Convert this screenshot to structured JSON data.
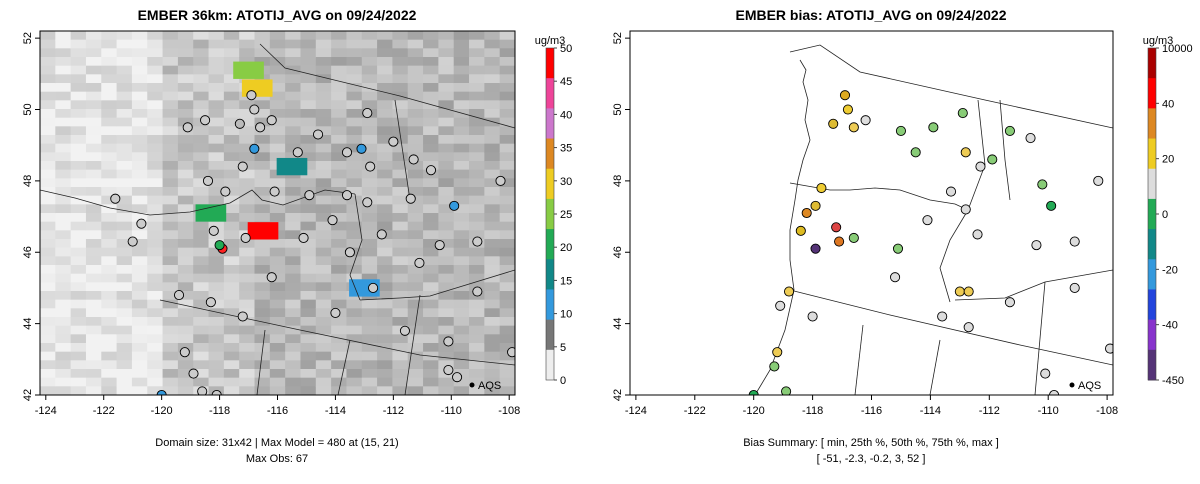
{
  "chart_data": [
    {
      "type": "heatmap",
      "title": "EMBER 36km: ATOTIJ_AVG on 09/24/2022",
      "x_ticks": [
        -124,
        -122,
        -120,
        -118,
        -116,
        -114,
        -112,
        -110,
        -108
      ],
      "y_ticks": [
        42,
        44,
        46,
        48,
        50,
        52
      ],
      "xlim": [
        -124.2,
        -107.8
      ],
      "ylim": [
        42.0,
        52.2
      ],
      "legend": {
        "unit": "ug/m3",
        "labels": [
          "50",
          "45",
          "40",
          "35",
          "30",
          "25",
          "20",
          "15",
          "10",
          "5",
          "0"
        ],
        "colors": [
          "#ff0000",
          "#ee4499",
          "#cc77cc",
          "#dd8822",
          "#eecc22",
          "#88cc44",
          "#22aa55",
          "#118888",
          "#3399dd",
          "#777777",
          "#eeeeee"
        ]
      },
      "hotspots": [
        {
          "lon": -116.5,
          "lat": 46.6,
          "value": 50
        },
        {
          "lon": -116.7,
          "lat": 50.6,
          "value": 30
        },
        {
          "lon": -117.0,
          "lat": 51.1,
          "value": 25
        },
        {
          "lon": -118.3,
          "lat": 47.1,
          "value": 22
        },
        {
          "lon": -115.5,
          "lat": 48.4,
          "value": 15
        },
        {
          "lon": -113.0,
          "lat": 45.0,
          "value": 12
        }
      ],
      "stations": [
        {
          "lon": -117.1,
          "lat": 46.4,
          "color": "#cccccc"
        },
        {
          "lon": -117.9,
          "lat": 46.1,
          "color": "#ff2222"
        },
        {
          "lon": -116.9,
          "lat": 50.4,
          "color": "#cccccc"
        },
        {
          "lon": -116.8,
          "lat": 50.0,
          "color": "#cccccc"
        },
        {
          "lon": -117.3,
          "lat": 49.6,
          "color": "#bbbbbb"
        },
        {
          "lon": -116.6,
          "lat": 49.5,
          "color": "#cccccc"
        },
        {
          "lon": -116.2,
          "lat": 49.7,
          "color": "#cccccc"
        },
        {
          "lon": -118.5,
          "lat": 49.7,
          "color": "#cccccc"
        },
        {
          "lon": -119.1,
          "lat": 49.5,
          "color": "#cccccc"
        },
        {
          "lon": -115.3,
          "lat": 48.8,
          "color": "#cccccc"
        },
        {
          "lon": -114.6,
          "lat": 49.3,
          "color": "#cccccc"
        },
        {
          "lon": -112.9,
          "lat": 49.9,
          "color": "#cccccc"
        },
        {
          "lon": -112.0,
          "lat": 49.1,
          "color": "#cccccc"
        },
        {
          "lon": -113.6,
          "lat": 48.8,
          "color": "#cccccc"
        },
        {
          "lon": -112.8,
          "lat": 48.4,
          "color": "#cccccc"
        },
        {
          "lon": -111.3,
          "lat": 48.6,
          "color": "#cccccc"
        },
        {
          "lon": -110.7,
          "lat": 48.3,
          "color": "#cccccc"
        },
        {
          "lon": -114.9,
          "lat": 47.6,
          "color": "#cccccc"
        },
        {
          "lon": -113.6,
          "lat": 47.6,
          "color": "#cccccc"
        },
        {
          "lon": -112.9,
          "lat": 47.4,
          "color": "#cccccc"
        },
        {
          "lon": -111.4,
          "lat": 47.5,
          "color": "#cccccc"
        },
        {
          "lon": -114.1,
          "lat": 46.9,
          "color": "#cccccc"
        },
        {
          "lon": -112.4,
          "lat": 46.5,
          "color": "#cccccc"
        },
        {
          "lon": -115.1,
          "lat": 46.4,
          "color": "#cccccc"
        },
        {
          "lon": -113.5,
          "lat": 46.0,
          "color": "#cccccc"
        },
        {
          "lon": -111.1,
          "lat": 45.7,
          "color": "#cccccc"
        },
        {
          "lon": -112.7,
          "lat": 45.0,
          "color": "#cccccc"
        },
        {
          "lon": -116.2,
          "lat": 45.3,
          "color": "#cccccc"
        },
        {
          "lon": -114.0,
          "lat": 44.3,
          "color": "#cccccc"
        },
        {
          "lon": -111.6,
          "lat": 43.8,
          "color": "#cccccc"
        },
        {
          "lon": -118.3,
          "lat": 44.6,
          "color": "#cccccc"
        },
        {
          "lon": -119.4,
          "lat": 44.8,
          "color": "#cccccc"
        },
        {
          "lon": -117.2,
          "lat": 44.2,
          "color": "#cccccc"
        },
        {
          "lon": -119.2,
          "lat": 43.2,
          "color": "#cccccc"
        },
        {
          "lon": -118.9,
          "lat": 42.6,
          "color": "#cccccc"
        },
        {
          "lon": -118.1,
          "lat": 42.0,
          "color": "#cccccc"
        },
        {
          "lon": -118.6,
          "lat": 42.1,
          "color": "#cccccc"
        },
        {
          "lon": -120.0,
          "lat": 42.0,
          "color": "#3399dd"
        },
        {
          "lon": -121.6,
          "lat": 47.5,
          "color": "#cccccc"
        },
        {
          "lon": -120.7,
          "lat": 46.8,
          "color": "#cccccc"
        },
        {
          "lon": -121.0,
          "lat": 46.3,
          "color": "#cccccc"
        },
        {
          "lon": -118.2,
          "lat": 46.6,
          "color": "#cccccc"
        },
        {
          "lon": -117.8,
          "lat": 47.7,
          "color": "#cccccc"
        },
        {
          "lon": -118.4,
          "lat": 48.0,
          "color": "#cccccc"
        },
        {
          "lon": -116.1,
          "lat": 47.7,
          "color": "#cccccc"
        },
        {
          "lon": -109.9,
          "lat": 47.3,
          "color": "#3399dd"
        },
        {
          "lon": -108.3,
          "lat": 48.0,
          "color": "#cccccc"
        },
        {
          "lon": -109.1,
          "lat": 46.3,
          "color": "#cccccc"
        },
        {
          "lon": -110.4,
          "lat": 46.2,
          "color": "#cccccc"
        },
        {
          "lon": -109.1,
          "lat": 44.9,
          "color": "#cccccc"
        },
        {
          "lon": -110.1,
          "lat": 43.5,
          "color": "#cccccc"
        },
        {
          "lon": -109.8,
          "lat": 42.5,
          "color": "#cccccc"
        },
        {
          "lon": -110.1,
          "lat": 42.7,
          "color": "#cccccc"
        },
        {
          "lon": -107.9,
          "lat": 43.2,
          "color": "#cccccc"
        },
        {
          "lon": -117.2,
          "lat": 48.4,
          "color": "#cccccc"
        },
        {
          "lon": -116.8,
          "lat": 48.9,
          "color": "#3399dd"
        },
        {
          "lon": -113.1,
          "lat": 48.9,
          "color": "#3399dd"
        },
        {
          "lon": -118.0,
          "lat": 46.2,
          "color": "#22aa55"
        }
      ],
      "aqs_label": "AQS",
      "footer_lines": [
        "Domain size: 31x42 | Max Model = 480 at (15, 21)",
        "Max Obs: 67"
      ]
    },
    {
      "type": "scatter",
      "title": "EMBER bias: ATOTIJ_AVG on 09/24/2022",
      "x_ticks": [
        -124,
        -122,
        -120,
        -118,
        -116,
        -114,
        -112,
        -110,
        -108
      ],
      "y_ticks": [
        42,
        44,
        46,
        48,
        50,
        52
      ],
      "xlim": [
        -124.2,
        -107.8
      ],
      "ylim": [
        42.0,
        52.2
      ],
      "legend": {
        "unit": "ug/m3",
        "labels": [
          "10000",
          "40",
          "20",
          "0",
          "-20",
          "-40",
          "-450"
        ],
        "colors": [
          "#aa0000",
          "#ff0000",
          "#dd8822",
          "#eecc22",
          "#dddddd",
          "#22aa55",
          "#118888",
          "#3399dd",
          "#2244dd",
          "#8833cc",
          "#553377"
        ]
      },
      "stations": [
        {
          "lon": -116.9,
          "lat": 50.4,
          "color": "#ddaa22"
        },
        {
          "lon": -116.8,
          "lat": 50.0,
          "color": "#eecc33"
        },
        {
          "lon": -117.3,
          "lat": 49.6,
          "color": "#ddbb33"
        },
        {
          "lon": -116.6,
          "lat": 49.5,
          "color": "#eecc55"
        },
        {
          "lon": -116.2,
          "lat": 49.7,
          "color": "#dddddd"
        },
        {
          "lon": -115.0,
          "lat": 49.4,
          "color": "#88cc77"
        },
        {
          "lon": -113.9,
          "lat": 49.5,
          "color": "#88cc77"
        },
        {
          "lon": -112.9,
          "lat": 49.9,
          "color": "#88cc77"
        },
        {
          "lon": -111.3,
          "lat": 49.4,
          "color": "#88cc77"
        },
        {
          "lon": -110.6,
          "lat": 49.2,
          "color": "#dddddd"
        },
        {
          "lon": -114.5,
          "lat": 48.8,
          "color": "#88cc77"
        },
        {
          "lon": -112.8,
          "lat": 48.8,
          "color": "#eecc55"
        },
        {
          "lon": -112.3,
          "lat": 48.4,
          "color": "#dddddd"
        },
        {
          "lon": -111.9,
          "lat": 48.6,
          "color": "#88cc77"
        },
        {
          "lon": -110.2,
          "lat": 47.9,
          "color": "#88cc77"
        },
        {
          "lon": -109.9,
          "lat": 47.3,
          "color": "#22aa55"
        },
        {
          "lon": -108.3,
          "lat": 48.0,
          "color": "#dddddd"
        },
        {
          "lon": -117.7,
          "lat": 47.8,
          "color": "#eecc33"
        },
        {
          "lon": -117.9,
          "lat": 47.3,
          "color": "#ddbb33"
        },
        {
          "lon": -118.2,
          "lat": 47.1,
          "color": "#dd8822"
        },
        {
          "lon": -118.4,
          "lat": 46.6,
          "color": "#ddbb22"
        },
        {
          "lon": -117.2,
          "lat": 46.7,
          "color": "#dd4444"
        },
        {
          "lon": -117.1,
          "lat": 46.3,
          "color": "#dd7722"
        },
        {
          "lon": -117.9,
          "lat": 46.1,
          "color": "#553377"
        },
        {
          "lon": -116.6,
          "lat": 46.4,
          "color": "#88cc77"
        },
        {
          "lon": -113.3,
          "lat": 47.7,
          "color": "#dddddd"
        },
        {
          "lon": -114.1,
          "lat": 46.9,
          "color": "#dddddd"
        },
        {
          "lon": -112.8,
          "lat": 47.2,
          "color": "#dddddd"
        },
        {
          "lon": -112.4,
          "lat": 46.5,
          "color": "#dddddd"
        },
        {
          "lon": -115.1,
          "lat": 46.1,
          "color": "#88cc77"
        },
        {
          "lon": -113.0,
          "lat": 44.9,
          "color": "#eecc55"
        },
        {
          "lon": -112.7,
          "lat": 44.9,
          "color": "#eecc55"
        },
        {
          "lon": -115.2,
          "lat": 45.3,
          "color": "#dddddd"
        },
        {
          "lon": -111.3,
          "lat": 44.6,
          "color": "#dddddd"
        },
        {
          "lon": -109.1,
          "lat": 45.0,
          "color": "#dddddd"
        },
        {
          "lon": -110.4,
          "lat": 46.2,
          "color": "#dddddd"
        },
        {
          "lon": -109.1,
          "lat": 46.3,
          "color": "#dddddd"
        },
        {
          "lon": -118.8,
          "lat": 44.9,
          "color": "#eecc55"
        },
        {
          "lon": -119.1,
          "lat": 44.5,
          "color": "#dddddd"
        },
        {
          "lon": -118.0,
          "lat": 44.2,
          "color": "#dddddd"
        },
        {
          "lon": -119.2,
          "lat": 43.2,
          "color": "#eecc55"
        },
        {
          "lon": -119.3,
          "lat": 42.8,
          "color": "#88cc77"
        },
        {
          "lon": -120.0,
          "lat": 42.0,
          "color": "#22aa55"
        },
        {
          "lon": -118.9,
          "lat": 42.1,
          "color": "#88cc77"
        },
        {
          "lon": -110.1,
          "lat": 42.6,
          "color": "#dddddd"
        },
        {
          "lon": -109.8,
          "lat": 42.0,
          "color": "#dddddd"
        },
        {
          "lon": -107.9,
          "lat": 43.3,
          "color": "#dddddd"
        },
        {
          "lon": -112.7,
          "lat": 43.9,
          "color": "#dddddd"
        },
        {
          "lon": -113.6,
          "lat": 44.2,
          "color": "#dddddd"
        }
      ],
      "aqs_label": "AQS",
      "footer_lines": [
        "Bias Summary: [ min, 25th %, 50th %, 75th %, max ]",
        "[ -51,   -2.3,   -0.2,   3,   52 ]"
      ]
    }
  ]
}
